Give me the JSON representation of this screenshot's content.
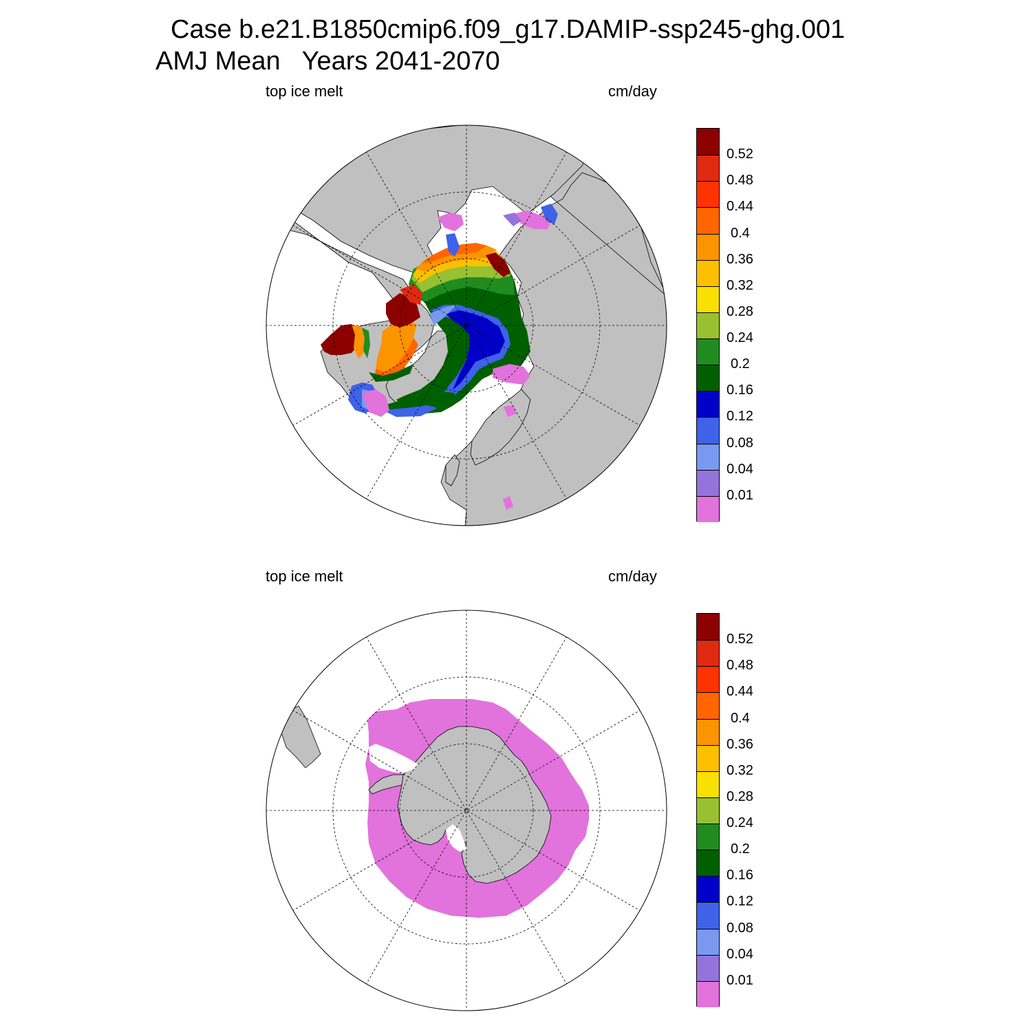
{
  "title": {
    "line1": "Case b.e21.B1850cmip6.f09_g17.DAMIP-ssp245-ghg.001",
    "line2": "AMJ Mean   Years 2041-2070"
  },
  "colors": {
    "land": "#c0c0c0",
    "ocean": "#ffffff",
    "outline": "#000000"
  },
  "colorbar": {
    "levels": [
      "0.01",
      "0.04",
      "0.08",
      "0.12",
      "0.16",
      "0.2",
      "0.24",
      "0.28",
      "0.32",
      "0.36",
      "0.4",
      "0.44",
      "0.48",
      "0.52"
    ],
    "colors": [
      "#e272dc",
      "#9474dc",
      "#7999f0",
      "#3e62e8",
      "#0000c8",
      "#006000",
      "#208c20",
      "#98c030",
      "#f8e000",
      "#fcc000",
      "#fc9400",
      "#ff6600",
      "#ff3300",
      "#e02a10",
      "#8c0000"
    ]
  },
  "panels": [
    {
      "id": "north",
      "variable": "top ice melt",
      "units": "cm/day",
      "hemisphere": "Arctic (North Polar Stereographic)"
    },
    {
      "id": "south",
      "variable": "top ice melt",
      "units": "cm/day",
      "hemisphere": "Antarctic (South Polar Stereographic)"
    }
  ]
}
